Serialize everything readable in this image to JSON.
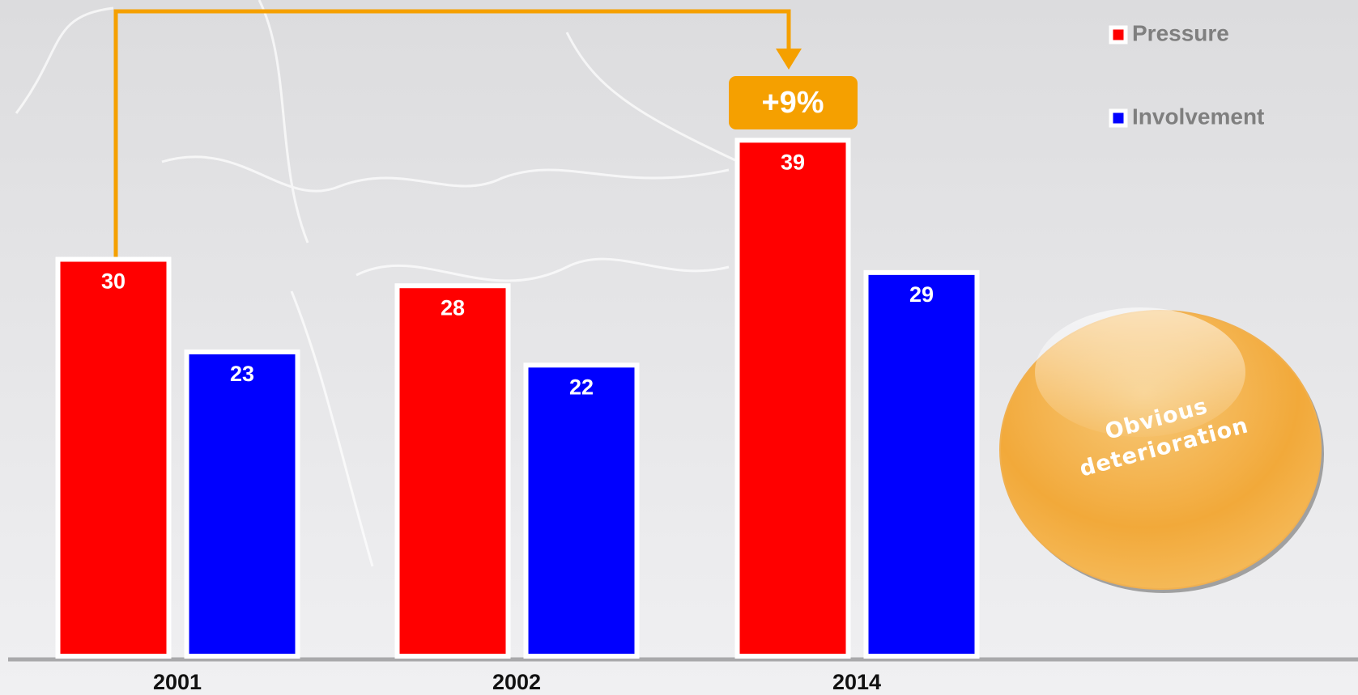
{
  "chart_data": {
    "type": "bar",
    "categories": [
      "2001",
      "2002",
      "2014"
    ],
    "series": [
      {
        "name": "Pressure",
        "color": "#ff0000",
        "values": [
          30,
          28,
          39
        ]
      },
      {
        "name": "Involvement",
        "color": "#0000ff",
        "values": [
          23,
          22,
          29
        ]
      }
    ],
    "annotations": [
      "+9%",
      "Obvious deterioration"
    ]
  }
}
